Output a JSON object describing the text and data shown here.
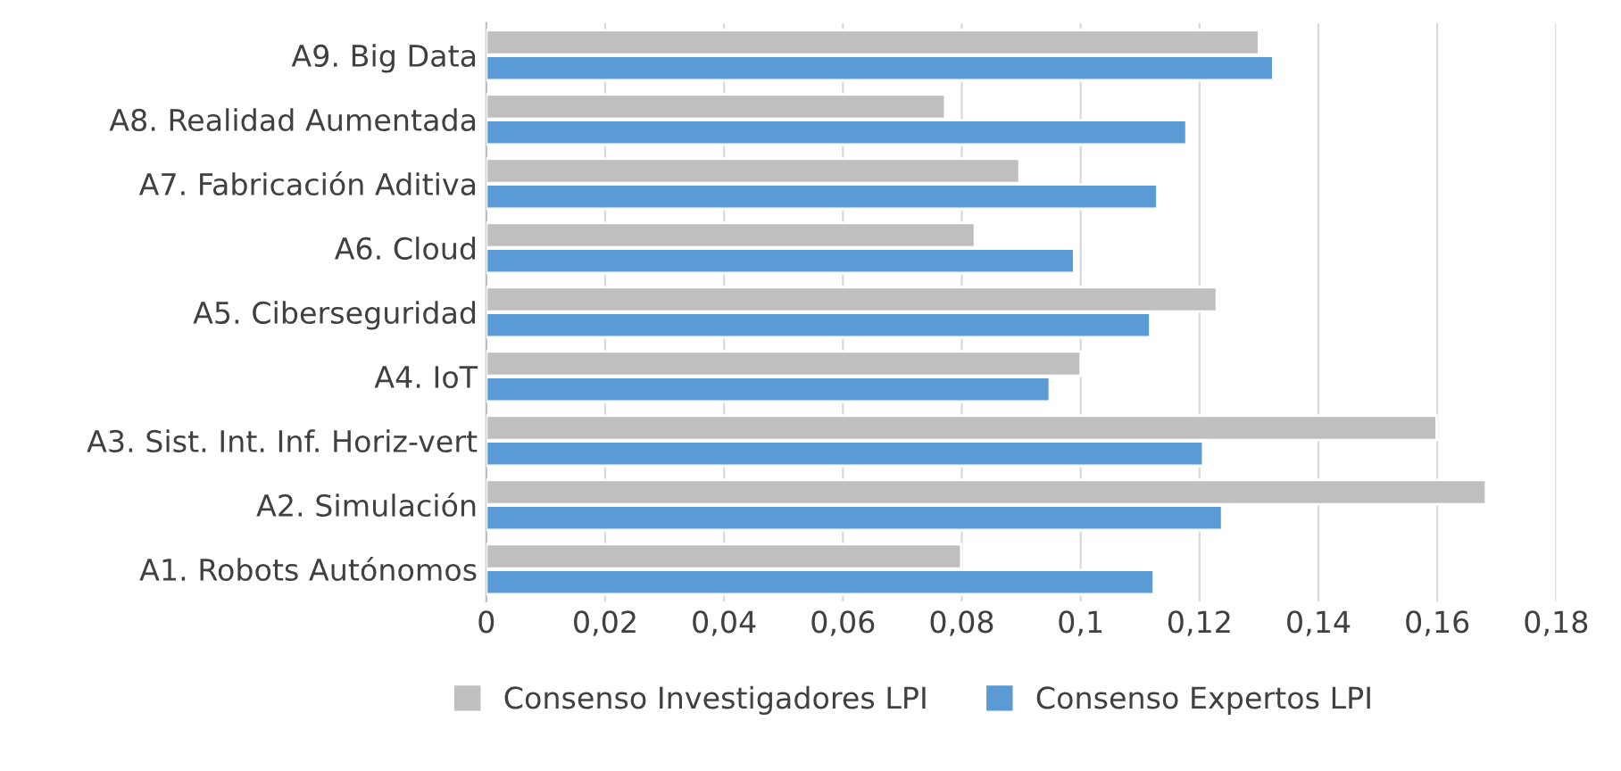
{
  "chart_data": {
    "type": "bar",
    "orientation": "horizontal",
    "categories": [
      "A9. Big Data",
      "A8. Realidad Aumentada",
      "A7. Fabricación Aditiva",
      "A6. Cloud",
      "A5. Ciberseguridad",
      "A4. IoT",
      "A3. Sist. Int. Inf. Horiz-vert",
      "A2. Simulación",
      "A1. Robots Autónomos"
    ],
    "series": [
      {
        "name": "Consenso Investigadores LPI",
        "color": "#bfbfbf",
        "values": [
          0.13,
          0.0772,
          0.0897,
          0.0822,
          0.1229,
          0.1,
          0.1599,
          0.1682,
          0.0799
        ]
      },
      {
        "name": "Consenso Expertos LPI",
        "color": "#5b9bd5",
        "values": [
          0.1324,
          0.1178,
          0.1129,
          0.0989,
          0.1117,
          0.0948,
          0.1206,
          0.1238,
          0.1123
        ]
      }
    ],
    "xlim": [
      0,
      0.18
    ],
    "xticks": [
      0,
      {
        "value": 0.02,
        "label": "0,02"
      },
      {
        "value": 0.04,
        "label": "0,04"
      },
      {
        "value": 0.06,
        "label": "0,06"
      },
      {
        "value": 0.08,
        "label": "0,08"
      },
      {
        "value": 0.1,
        "label": "0,1"
      },
      {
        "value": 0.12,
        "label": "0,12"
      },
      {
        "value": 0.14,
        "label": "0,14"
      },
      {
        "value": 0.16,
        "label": "0,16"
      },
      {
        "value": 0.18,
        "label": "0,18"
      }
    ],
    "grid": "x",
    "legend": "bottom"
  }
}
